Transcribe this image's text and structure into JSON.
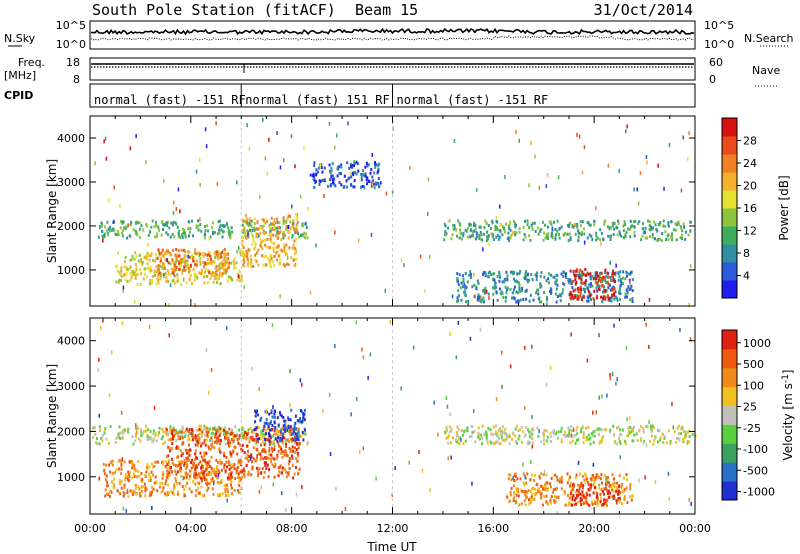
{
  "header": {
    "station": "South Pole Station (fitACF)",
    "beam": "Beam 15",
    "date": "31/Oct/2014"
  },
  "noise_panel": {
    "left_label": "N.Sky",
    "left_ticks": [
      "10^5",
      "10^0"
    ],
    "right_label": "N.Search",
    "right_ticks": [
      "10^5",
      "10^0"
    ]
  },
  "freq_panel": {
    "left_label_1": "Freq.",
    "left_label_2": "[MHz]",
    "left_ticks": [
      "18",
      "8"
    ],
    "right_label": "Nave",
    "right_ticks": [
      "60",
      "0"
    ]
  },
  "cpid_panel": {
    "label": "CPID",
    "segments": [
      {
        "label": "normal (fast) -151 RF",
        "start_hour": 0,
        "end_hour": 6.0
      },
      {
        "label": "normal (fast) 151 RF",
        "start_hour": 6.0,
        "end_hour": 12.0
      },
      {
        "label": "normal (fast) -151 RF",
        "start_hour": 12.0,
        "end_hour": 24.0
      }
    ]
  },
  "chart_data": [
    {
      "type": "heatmap",
      "ylabel": "Slant Range [km]",
      "ylim": [
        180,
        4500
      ],
      "yticks": [
        1000,
        2000,
        3000,
        4000
      ],
      "xlim": [
        0,
        24
      ],
      "colorbar": {
        "label": "Power [dB]",
        "ticks": [
          "4",
          "8",
          "12",
          "16",
          "20",
          "24",
          "28"
        ],
        "colors": [
          "#1e1ef0",
          "#2a5ad8",
          "#2f8fa0",
          "#3fae5c",
          "#8cc43c",
          "#e8e030",
          "#f5b030",
          "#f08020",
          "#e84a18",
          "#d81010"
        ]
      },
      "echo_regions": [
        {
          "t0": 0.3,
          "t1": 5.7,
          "r0": 1750,
          "r1": 2150,
          "level": 3
        },
        {
          "t0": 6.0,
          "t1": 8.6,
          "r0": 1750,
          "r1": 2150,
          "level": 3
        },
        {
          "t0": 1.0,
          "t1": 6.0,
          "r0": 700,
          "r1": 1450,
          "level": 5
        },
        {
          "t0": 6.0,
          "t1": 8.2,
          "r0": 1100,
          "r1": 2300,
          "level": 6
        },
        {
          "t0": 2.5,
          "t1": 5.5,
          "r0": 900,
          "r1": 1500,
          "level": 7
        },
        {
          "t0": 8.7,
          "t1": 11.5,
          "r0": 2900,
          "r1": 3500,
          "level": 1
        },
        {
          "t0": 14.0,
          "t1": 23.8,
          "r0": 1700,
          "r1": 2150,
          "level": 3
        },
        {
          "t0": 14.5,
          "t1": 21.5,
          "r0": 300,
          "r1": 1000,
          "level": 2
        },
        {
          "t0": 19.0,
          "t1": 20.8,
          "r0": 350,
          "r1": 1050,
          "level": 9
        }
      ]
    },
    {
      "type": "heatmap",
      "ylabel": "Slant Range [km]",
      "ylim": [
        180,
        4500
      ],
      "yticks": [
        1000,
        2000,
        3000,
        4000
      ],
      "xlim": [
        0,
        24
      ],
      "xticks": [
        "00:00",
        "04:00",
        "08:00",
        "12:00",
        "16:00",
        "20:00",
        "00:00"
      ],
      "xlabel": "Time UT",
      "colorbar": {
        "label": "Velocity [m s",
        "label_sup": "-1",
        "ticks": [
          "1000",
          "500",
          "100",
          "25",
          "-25",
          "-100",
          "-500",
          "-1000"
        ],
        "colors": [
          "#2030d0",
          "#2a70c8",
          "#3ca060",
          "#58d040",
          "#c0c0b8",
          "#f0c020",
          "#f08a18",
          "#f05a10",
          "#e02010"
        ]
      },
      "echo_regions": [
        {
          "t0": 0.0,
          "t1": 8.6,
          "r0": 1750,
          "r1": 2150,
          "level": 4
        },
        {
          "t0": 0.5,
          "t1": 6.0,
          "r0": 600,
          "r1": 1400,
          "level": 6
        },
        {
          "t0": 3.0,
          "t1": 8.3,
          "r0": 1000,
          "r1": 2100,
          "level": 7
        },
        {
          "t0": 6.5,
          "t1": 8.5,
          "r0": 1800,
          "r1": 2500,
          "level": 0
        },
        {
          "t0": 14.0,
          "t1": 24.0,
          "r0": 1750,
          "r1": 2150,
          "level": 4
        },
        {
          "t0": 16.5,
          "t1": 21.5,
          "r0": 400,
          "r1": 1100,
          "level": 6
        },
        {
          "t0": 19.0,
          "t1": 21.0,
          "r0": 400,
          "r1": 900,
          "level": 8
        }
      ]
    }
  ]
}
